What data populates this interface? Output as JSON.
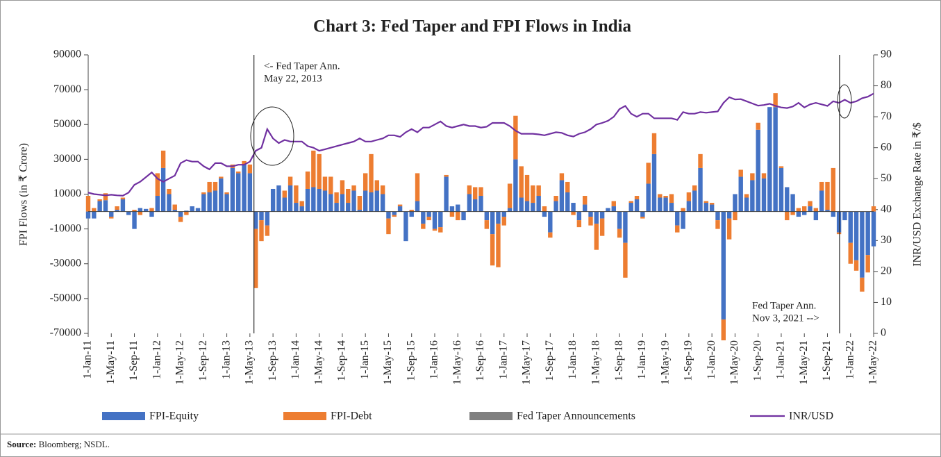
{
  "chart_data": {
    "type": "bar",
    "title": "Chart 3: Fed Taper and FPI Flows in India",
    "y_label": "FPI Flows (in ₹ Crore)",
    "y2_label": "INR/USD Exchange Rate in ₹/$",
    "categories": [
      "1-Jan-11",
      null,
      null,
      null,
      "1-May-11",
      null,
      null,
      null,
      "1-Sep-11",
      null,
      null,
      null,
      "1-Jan-12",
      null,
      null,
      null,
      "1-May-12",
      null,
      null,
      null,
      "1-Sep-12",
      null,
      null,
      null,
      "1-Jan-13",
      null,
      null,
      null,
      "1-May-13",
      null,
      null,
      null,
      "1-Sep-13",
      null,
      null,
      null,
      "1-Jan-14",
      null,
      null,
      null,
      "1-May-14",
      null,
      null,
      null,
      "1-Sep-14",
      null,
      null,
      null,
      "1-Jan-15",
      null,
      null,
      null,
      "1-May-15",
      null,
      null,
      null,
      "1-Sep-15",
      null,
      null,
      null,
      "1-Jan-16",
      null,
      null,
      null,
      "1-May-16",
      null,
      null,
      null,
      "1-Sep-16",
      null,
      null,
      null,
      "1-Jan-17",
      null,
      null,
      null,
      "1-May-17",
      null,
      null,
      null,
      "1-Sep-17",
      null,
      null,
      null,
      "1-Jan-18",
      null,
      null,
      null,
      "1-May-18",
      null,
      null,
      null,
      "1-Sep-18",
      null,
      null,
      null,
      "1-Jan-19",
      null,
      null,
      null,
      "1-May-19",
      null,
      null,
      null,
      "1-Sep-19",
      null,
      null,
      null,
      "1-Jan-20",
      null,
      null,
      null,
      "1-May-20",
      null,
      null,
      null,
      "1-Sep-20",
      null,
      null,
      null,
      "1-Jan-21",
      null,
      null,
      null,
      "1-May-21",
      null,
      null,
      null,
      "1-Sep-21",
      null,
      null,
      null,
      "1-Jan-22",
      null,
      null,
      null,
      "1-May-22"
    ],
    "series": [
      {
        "name": "FPI-Equity",
        "color": "#4472c4",
        "values": [
          -4000,
          -4000,
          6000,
          6500,
          -3000,
          1000,
          7000,
          -2000,
          -10000,
          2000,
          1500,
          -3000,
          9000,
          25000,
          10000,
          1000,
          -3000,
          500,
          3000,
          2000,
          10000,
          11000,
          12000,
          19000,
          10000,
          25000,
          22000,
          27000,
          22000,
          -10000,
          -5000,
          -8000,
          13000,
          15000,
          8000,
          15000,
          5000,
          3000,
          13000,
          14000,
          13000,
          12000,
          10000,
          5000,
          10000,
          5000,
          12000,
          1000,
          12000,
          11000,
          12000,
          10000,
          -4000,
          -2000,
          3000,
          -17000,
          -3000,
          6000,
          -7000,
          -3000,
          -10000,
          -9000,
          20000,
          3000,
          4000,
          -5000,
          10000,
          7000,
          9000,
          -5000,
          -13000,
          -7000,
          -3000,
          2000,
          30000,
          8000,
          6000,
          5000,
          9000,
          -3000,
          -12000,
          6000,
          18000,
          11000,
          5000,
          -5000,
          4000,
          -3000,
          -7000,
          -4000,
          2000,
          3000,
          -10000,
          -18000,
          5000,
          7000,
          -3000,
          16000,
          33000,
          8000,
          8000,
          5000,
          -8000,
          -10000,
          6000,
          12000,
          25000,
          5000,
          4000,
          -5000,
          -62000,
          -4000,
          10000,
          20000,
          8000,
          18000,
          47000,
          19000,
          60000,
          60000,
          25000,
          14000,
          10000,
          -3000,
          -2000,
          3000,
          -5000,
          12000,
          1000,
          -3000,
          -12000,
          -5000,
          -18000,
          -28000,
          -38000,
          -25000,
          -20000
        ]
      },
      {
        "name": "FPI-Debt",
        "color": "#ed7d31",
        "values": [
          9000,
          2000,
          1000,
          4000,
          -1000,
          2000,
          1000,
          0,
          1000,
          -2000,
          0,
          2000,
          13000,
          10000,
          3000,
          3000,
          -3000,
          -2000,
          0,
          0,
          1000,
          6000,
          5000,
          1000,
          1000,
          2000,
          1000,
          2000,
          5000,
          -34000,
          -12000,
          -6000,
          0,
          0,
          4000,
          5000,
          10000,
          3000,
          10000,
          21000,
          20000,
          8000,
          10000,
          6000,
          8000,
          8000,
          3000,
          8000,
          10000,
          22000,
          6000,
          5000,
          -9000,
          -1000,
          1000,
          0,
          1000,
          16000,
          -3000,
          -2000,
          -1000,
          -3000,
          1000,
          -3000,
          -5000,
          0,
          5000,
          7000,
          5000,
          -5000,
          -18000,
          -25000,
          -5000,
          14000,
          25000,
          18000,
          15000,
          10000,
          6000,
          3000,
          -3000,
          3000,
          4000,
          6000,
          -2000,
          -4000,
          5000,
          -5000,
          -15000,
          -10000,
          0,
          3000,
          -5000,
          -20000,
          1000,
          2000,
          -1000,
          12000,
          12000,
          2000,
          1000,
          5000,
          -4000,
          2000,
          5000,
          3000,
          8000,
          1000,
          1000,
          -5000,
          -12000,
          -12000,
          -5000,
          4000,
          2000,
          4000,
          4000,
          3000,
          0,
          8000,
          1000,
          -5000,
          -2000,
          2000,
          3000,
          3000,
          2000,
          5000,
          16000,
          25000,
          -1000,
          0,
          -12000,
          -6000,
          -8000,
          -10000,
          3000
        ]
      },
      {
        "name": "INR/USD",
        "color": "#7030a0",
        "axis": "y2",
        "values": [
          45.5,
          45,
          44.8,
          44.6,
          44.8,
          44.6,
          44.5,
          45.5,
          48,
          49,
          50.5,
          52,
          50,
          49,
          50,
          51,
          55,
          56,
          55.5,
          55.5,
          54,
          53,
          55,
          55,
          54,
          54,
          54.5,
          54.5,
          55.5,
          59,
          60,
          66,
          63,
          61.5,
          62.5,
          62,
          62,
          62,
          60.5,
          60,
          59,
          59.5,
          60,
          60.5,
          61,
          61.5,
          62,
          63,
          62,
          62,
          62.5,
          63,
          64,
          64,
          63.5,
          65,
          66,
          65,
          66.5,
          66.5,
          67.5,
          68.5,
          67,
          66.5,
          67,
          67.5,
          67,
          67,
          66.5,
          66.8,
          68,
          68,
          68,
          67,
          65.5,
          64.5,
          64.5,
          64.5,
          64.3,
          64,
          64.5,
          65,
          64.8,
          64,
          63.6,
          64.5,
          65,
          66,
          67.5,
          68,
          68.7,
          70,
          72.5,
          73.5,
          71,
          70,
          71,
          71,
          69.5,
          69.5,
          69.5,
          69.5,
          69,
          71.5,
          71,
          71,
          71.5,
          71.3,
          71.5,
          71.7,
          74.5,
          76.3,
          75.6,
          75.7,
          75,
          74.3,
          73.6,
          73.8,
          74.2,
          73.5,
          73,
          72.8,
          73.3,
          74.5,
          73,
          74,
          74.5,
          74,
          73.5,
          75,
          74.5,
          75.5,
          74.5,
          75,
          76,
          76.5,
          77.5
        ]
      }
    ],
    "markers": {
      "name": "Fed Taper Announcements",
      "color": "#808080"
    },
    "annotations": [
      [
        "<- Fed Taper Ann.",
        "May 22, 2013"
      ],
      [
        "Fed Taper Ann.",
        "Nov 3, 2021 -->"
      ]
    ],
    "ylim": [
      -70000,
      90000
    ],
    "yticks": [
      -70000,
      -50000,
      -30000,
      -10000,
      10000,
      30000,
      50000,
      70000,
      90000
    ],
    "y2lim": [
      0,
      90
    ],
    "y2ticks": [
      0,
      10,
      20,
      30,
      40,
      50,
      60,
      70,
      80,
      90
    ],
    "source_label": "Source:",
    "source": "Bloomberg; NSDL."
  }
}
